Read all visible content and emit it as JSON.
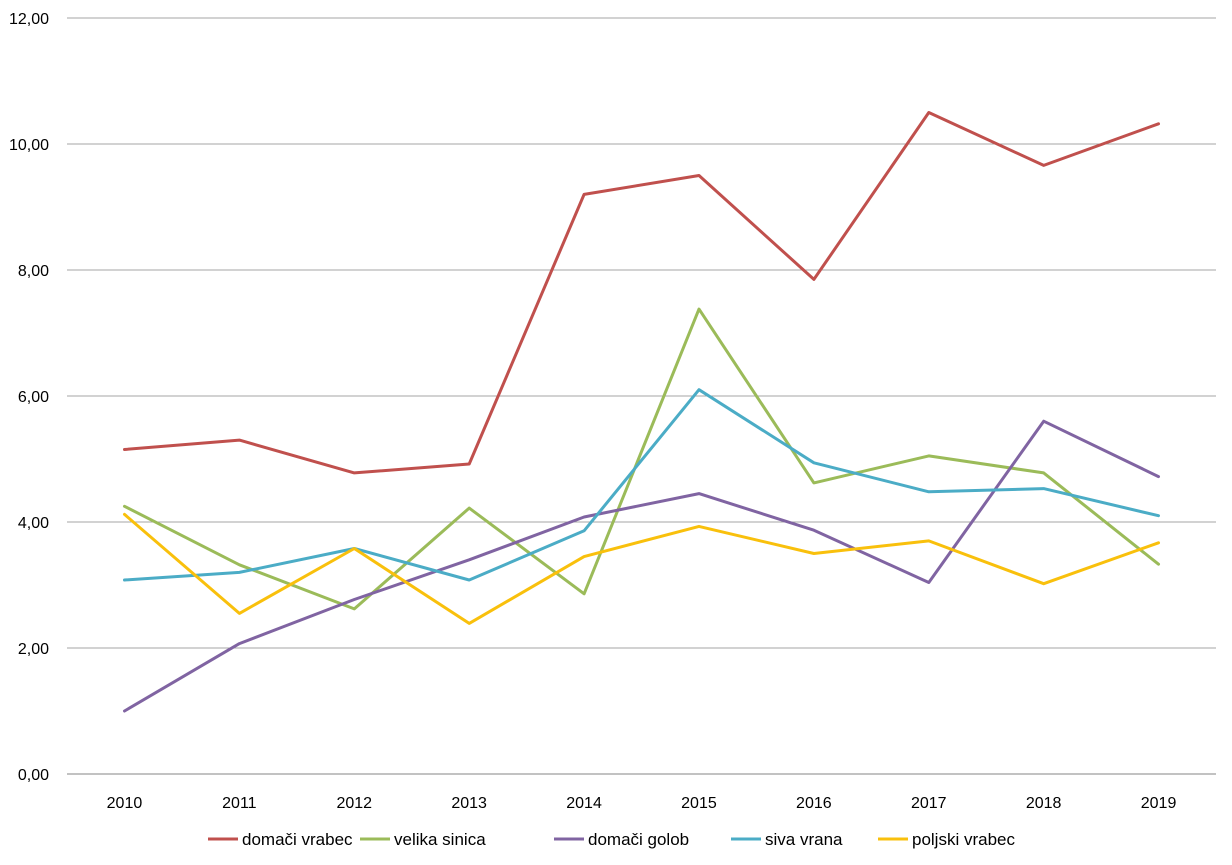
{
  "chart_data": {
    "type": "line",
    "title": "",
    "xlabel": "",
    "ylabel": "",
    "categories": [
      "2010",
      "2011",
      "2012",
      "2013",
      "2014",
      "2015",
      "2016",
      "2017",
      "2018",
      "2019"
    ],
    "ylim": [
      0,
      12
    ],
    "yticks": [
      "0,00",
      "2,00",
      "4,00",
      "6,00",
      "8,00",
      "10,00",
      "12,00"
    ],
    "grid": "horizontal",
    "legend_position": "bottom",
    "series": [
      {
        "name": "domači vrabec",
        "color": "#c0504d",
        "values": [
          5.15,
          5.3,
          4.78,
          4.92,
          9.2,
          9.5,
          7.85,
          10.5,
          9.66,
          10.32
        ]
      },
      {
        "name": "velika sinica",
        "color": "#9bbb59",
        "values": [
          4.25,
          3.32,
          2.62,
          4.22,
          2.86,
          7.38,
          4.62,
          5.05,
          4.78,
          3.33
        ]
      },
      {
        "name": "domači golob",
        "color": "#8064a2",
        "values": [
          1.0,
          2.07,
          2.77,
          3.4,
          4.08,
          4.45,
          3.87,
          3.04,
          5.6,
          4.72
        ]
      },
      {
        "name": "siva vrana",
        "color": "#4bacc6",
        "values": [
          3.08,
          3.2,
          3.58,
          3.08,
          3.86,
          6.1,
          4.94,
          4.48,
          4.53,
          4.1
        ]
      },
      {
        "name": "poljski vrabec",
        "color": "#f9c00c",
        "values": [
          4.12,
          2.55,
          3.58,
          2.39,
          3.45,
          3.93,
          3.5,
          3.7,
          3.02,
          3.67
        ]
      }
    ]
  }
}
